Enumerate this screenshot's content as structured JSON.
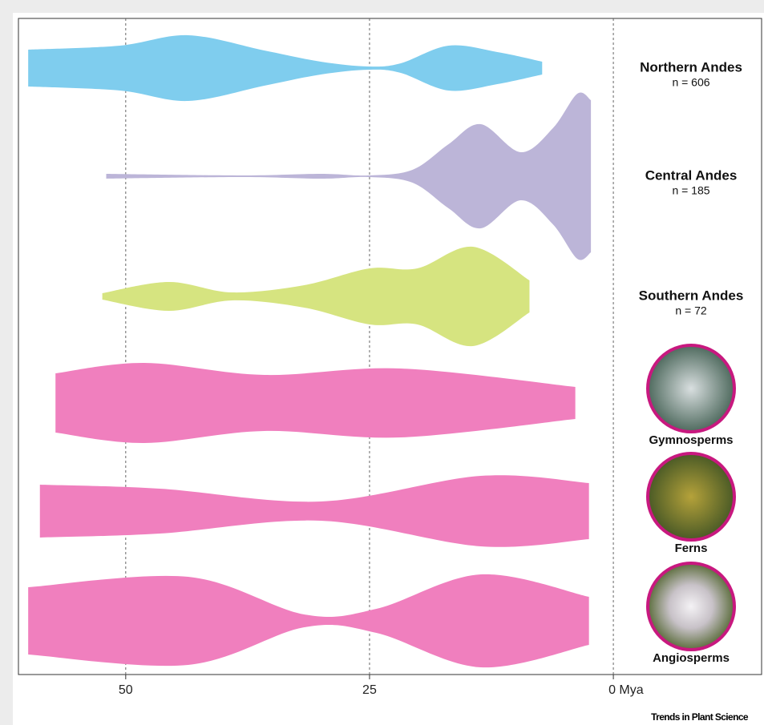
{
  "chart_data": {
    "type": "violin",
    "xlim": [
      61,
      -15.2
    ],
    "xticks": [
      50,
      25,
      {
        "value": 0,
        "label": "0 Mya"
      }
    ],
    "grid": true,
    "series": [
      {
        "name": "Northern Andes",
        "note": "n = 606",
        "color": "#7fcdee",
        "x": [
          60.0,
          50.6,
          43.6,
          35.8,
          30.0,
          25.1,
          21.8,
          16.9,
          11.9,
          7.3
        ],
        "values": [
          0.46,
          0.56,
          0.82,
          0.44,
          0.16,
          0.04,
          0.12,
          0.56,
          0.4,
          0.16
        ]
      },
      {
        "name": "Central Andes",
        "note": "n = 185",
        "color": "#bcb5d8",
        "x": [
          52.0,
          38.2,
          30.0,
          25.1,
          20.6,
          16.9,
          13.6,
          9.5,
          6.2,
          3.7,
          2.3
        ],
        "values": [
          0.06,
          0.02,
          0.06,
          0.02,
          0.16,
          0.8,
          1.3,
          0.6,
          1.2,
          2.06,
          1.9
        ]
      },
      {
        "name": "Southern Andes",
        "note": "n = 72",
        "color": "#d6e480",
        "x": [
          52.4,
          45.6,
          39.1,
          31.7,
          25.0,
          20.1,
          14.4,
          8.6
        ],
        "values": [
          0.08,
          0.36,
          0.1,
          0.28,
          0.7,
          0.7,
          1.24,
          0.4
        ]
      },
      {
        "name": "Gymnosperms",
        "color": "#f07fbe",
        "x": [
          57.2,
          48.1,
          35.8,
          21.8,
          3.9
        ],
        "values": [
          0.74,
          1.0,
          0.7,
          0.86,
          0.4
        ]
      },
      {
        "name": "Ferns",
        "color": "#f07fbe",
        "x": [
          58.8,
          46.5,
          30.0,
          13.6,
          2.5
        ],
        "values": [
          0.66,
          0.56,
          0.24,
          0.88,
          0.7
        ]
      },
      {
        "name": "Angiosperms",
        "color": "#f07fbe",
        "x": [
          60.0,
          43.6,
          31.7,
          24.3,
          13.6,
          2.5
        ],
        "values": [
          0.84,
          1.1,
          0.16,
          0.3,
          1.16,
          0.6
        ]
      }
    ],
    "credit": "Trends in Plant Science"
  }
}
